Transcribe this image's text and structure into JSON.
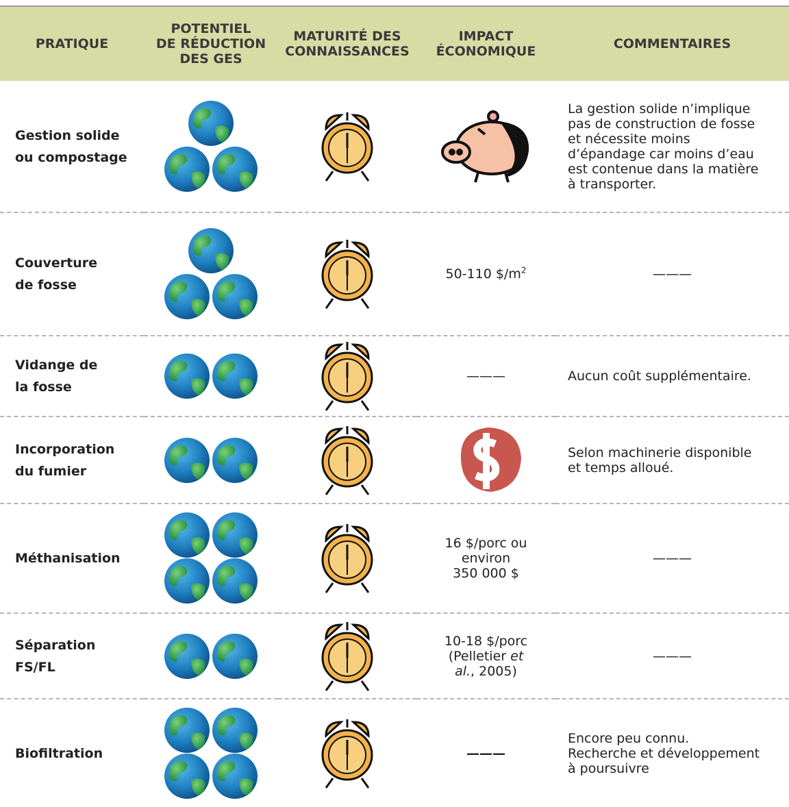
{
  "header": {
    "columns": [
      [
        "PRATIQUE"
      ],
      [
        "POTENTIEL",
        "DE RÉDUCTION",
        "DES GES"
      ],
      [
        "MATURITÉ DES",
        "CONNAISSANCES"
      ],
      [
        "IMPACT",
        "ÉCONOMIQUE"
      ],
      [
        "COMMENTAIRES"
      ]
    ]
  },
  "rows": [
    {
      "practice": [
        "Gestion solide",
        "ou compostage"
      ],
      "comment": [
        "La gestion solide n’implique",
        "pas de construction de fosse",
        "et nécessite moins",
        "d’épandage car moins d’eau",
        "est contenue dans la matière",
        "à transporter."
      ]
    },
    {
      "practice": [
        "Couverture",
        "de fosse"
      ],
      "impact": {
        "text": "50-110 $/m",
        "sup": "2"
      },
      "comment": [
        "———"
      ]
    },
    {
      "practice": [
        "Vidange de",
        "la fosse"
      ],
      "impact": [
        "———"
      ],
      "comment": [
        "Aucun coût supplémentaire."
      ]
    },
    {
      "practice": [
        "Incorporation",
        "du fumier"
      ],
      "comment": [
        "Selon machinerie disponible",
        "et temps alloué."
      ]
    },
    {
      "practice": [
        "Méthanisation"
      ],
      "impact": [
        "16 $/porc ou",
        "environ",
        "350 000 $"
      ],
      "comment": [
        "———"
      ]
    },
    {
      "practice": [
        "Séparation",
        "FS/FL"
      ],
      "impact": [
        "10-18 $/porc",
        [
          "(Pelletier ",
          "et"
        ],
        [
          "al.",
          ", 2005)"
        ]
      ],
      "comment": [
        "———"
      ]
    },
    {
      "practice": [
        "Biofiltration"
      ],
      "impact": [
        "———"
      ],
      "comment": [
        "Encore peu connu.",
        "Recherche et développement",
        "à poursuivre"
      ]
    }
  ]
}
